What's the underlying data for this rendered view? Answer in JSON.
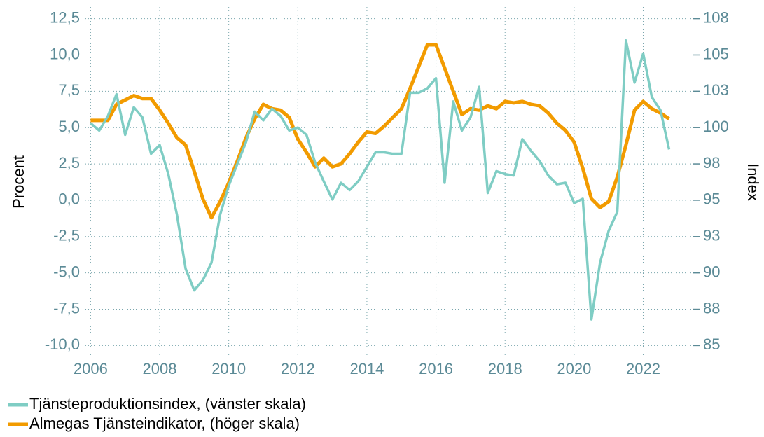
{
  "chart_data": {
    "type": "line",
    "ylabel": "Procent",
    "y2label": "Index",
    "x": [
      2006,
      2006.25,
      2006.5,
      2006.75,
      2007,
      2007.25,
      2007.5,
      2007.75,
      2008,
      2008.25,
      2008.5,
      2008.75,
      2009,
      2009.25,
      2009.5,
      2009.75,
      2010,
      2010.25,
      2010.5,
      2010.75,
      2011,
      2011.25,
      2011.5,
      2011.75,
      2012,
      2012.25,
      2012.5,
      2012.75,
      2013,
      2013.25,
      2013.5,
      2013.75,
      2014,
      2014.25,
      2014.5,
      2014.75,
      2015,
      2015.25,
      2015.5,
      2015.75,
      2016,
      2016.25,
      2016.5,
      2016.75,
      2017,
      2017.25,
      2017.5,
      2017.75,
      2018,
      2018.25,
      2018.5,
      2018.75,
      2019,
      2019.25,
      2019.5,
      2019.75,
      2020,
      2020.25,
      2020.5,
      2020.75,
      2021,
      2021.25,
      2021.5,
      2021.75,
      2022,
      2022.25,
      2022.5,
      2022.75
    ],
    "series": [
      {
        "name": "Tjänsteproduktionsindex, (vänster skala)",
        "color": "#7fcdc4",
        "axis": "y",
        "values": [
          5.3,
          4.8,
          5.8,
          7.3,
          4.5,
          6.4,
          5.7,
          3.2,
          3.8,
          1.8,
          -1.0,
          -4.7,
          -6.2,
          -5.5,
          -4.3,
          -1.0,
          1.0,
          2.5,
          4.0,
          6.1,
          5.5,
          6.3,
          5.8,
          4.8,
          5.0,
          4.5,
          2.6,
          1.3,
          0.05,
          1.2,
          0.7,
          1.3,
          2.3,
          3.3,
          3.3,
          3.2,
          3.2,
          7.4,
          7.4,
          7.7,
          8.4,
          1.2,
          6.8,
          4.8,
          5.7,
          7.8,
          0.5,
          2.0,
          1.8,
          1.7,
          4.2,
          3.4,
          2.7,
          1.7,
          1.1,
          1.2,
          -0.2,
          0.1,
          -8.2,
          -4.3,
          -2.1,
          -0.8,
          11.0,
          8.1,
          10.1,
          7.1,
          6.2,
          3.5
        ]
      },
      {
        "name": "Almegas Tjänsteindikator, (höger skala)",
        "color": "#f29b00",
        "axis": "y2",
        "values": [
          100.5,
          100.5,
          100.5,
          101.6,
          101.9,
          102.2,
          102.0,
          102.0,
          101.2,
          100.3,
          99.3,
          98.8,
          97.0,
          95.1,
          93.8,
          94.9,
          96.2,
          97.7,
          99.3,
          100.6,
          101.6,
          101.3,
          101.2,
          100.7,
          99.2,
          98.3,
          97.3,
          97.9,
          97.3,
          97.5,
          98.2,
          99.0,
          99.7,
          99.6,
          100.1,
          100.7,
          101.3,
          102.7,
          104.2,
          105.7,
          105.7,
          104.1,
          102.5,
          100.9,
          101.3,
          101.2,
          101.5,
          101.3,
          101.8,
          101.7,
          101.8,
          101.6,
          101.5,
          101.0,
          100.3,
          99.8,
          99.0,
          97.2,
          95.1,
          94.5,
          94.9,
          96.6,
          98.8,
          101.2,
          101.8,
          101.3,
          101.0,
          100.6
        ]
      }
    ],
    "xlim": [
      2005.85,
      2023.45
    ],
    "xticks": [
      2006,
      2008,
      2010,
      2012,
      2014,
      2016,
      2018,
      2020,
      2022
    ],
    "ylim": [
      -10.8,
      13.3
    ],
    "yticks": [
      {
        "value": -10,
        "label": "-10,0"
      },
      {
        "value": -7.5,
        "label": "-7,5"
      },
      {
        "value": -5,
        "label": "-5,0"
      },
      {
        "value": -2.5,
        "label": "-2,5"
      },
      {
        "value": 0,
        "label": "0,0"
      },
      {
        "value": 2.5,
        "label": "2,5"
      },
      {
        "value": 5,
        "label": "5,0"
      },
      {
        "value": 7.5,
        "label": "7,5"
      },
      {
        "value": 10,
        "label": "10,0"
      },
      {
        "value": 12.5,
        "label": "12,5"
      }
    ],
    "y2lim": [
      84.2,
      108.3
    ],
    "y2ticks": [
      85,
      {
        "value": 87.5,
        "label": "88"
      },
      90,
      {
        "value": 92.5,
        "label": "93"
      },
      95,
      {
        "value": 97.5,
        "label": "98"
      },
      100,
      {
        "value": 102.5,
        "label": "103"
      },
      105,
      {
        "value": 107.5,
        "label": "108"
      }
    ],
    "grid": true
  }
}
